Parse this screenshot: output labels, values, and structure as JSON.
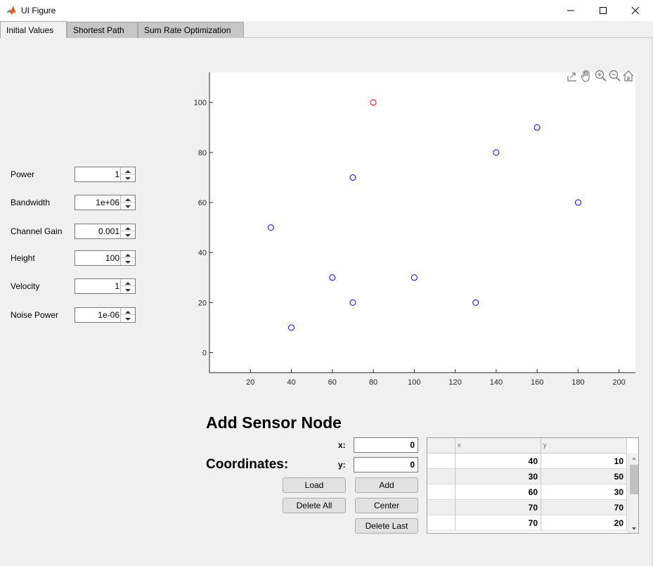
{
  "window": {
    "title": "UI Figure"
  },
  "tabs": [
    "Initial Values",
    "Shortest Path",
    "Sum Rate Optimization"
  ],
  "params": [
    {
      "label": "Power",
      "value": "1"
    },
    {
      "label": "Bandwidth",
      "value": "1e+06"
    },
    {
      "label": "Channel Gain",
      "value": "0.001"
    },
    {
      "label": "Height",
      "value": "100"
    },
    {
      "label": "Velocity",
      "value": "1"
    },
    {
      "label": "Noise Power",
      "value": "1e-06"
    }
  ],
  "axes_toolbar": [
    "export-icon",
    "pan-icon",
    "zoom-in-icon",
    "zoom-out-icon",
    "home-icon"
  ],
  "chart_data": {
    "type": "scatter",
    "xlim": [
      0,
      208
    ],
    "ylim": [
      -8,
      112
    ],
    "xticks": [
      20,
      40,
      60,
      80,
      100,
      120,
      140,
      160,
      180,
      200
    ],
    "yticks": [
      0,
      20,
      40,
      60,
      80,
      100
    ],
    "grid": false,
    "series": [
      {
        "color": "#0000ff",
        "points": [
          [
            30,
            50
          ],
          [
            40,
            10
          ],
          [
            60,
            30
          ],
          [
            70,
            70
          ],
          [
            70,
            20
          ],
          [
            100,
            30
          ],
          [
            130,
            20
          ],
          [
            140,
            80
          ],
          [
            160,
            90
          ],
          [
            180,
            60
          ]
        ]
      },
      {
        "color": "#ff0000",
        "points": [
          [
            80,
            100
          ]
        ]
      }
    ]
  },
  "add_node": {
    "heading": "Add Sensor Node",
    "coordinates_label": "Coordinates:",
    "x_label": "x:",
    "y_label": "y:",
    "x_value": "0",
    "y_value": "0",
    "buttons": {
      "load": "Load",
      "add": "Add",
      "delete_all": "Delete All",
      "center": "Center",
      "delete_last": "Delete Last"
    }
  },
  "table": {
    "columns": [
      "x",
      "y"
    ],
    "rows": [
      [
        "40",
        "10"
      ],
      [
        "30",
        "50"
      ],
      [
        "60",
        "30"
      ],
      [
        "70",
        "70"
      ],
      [
        "70",
        "20"
      ]
    ]
  }
}
